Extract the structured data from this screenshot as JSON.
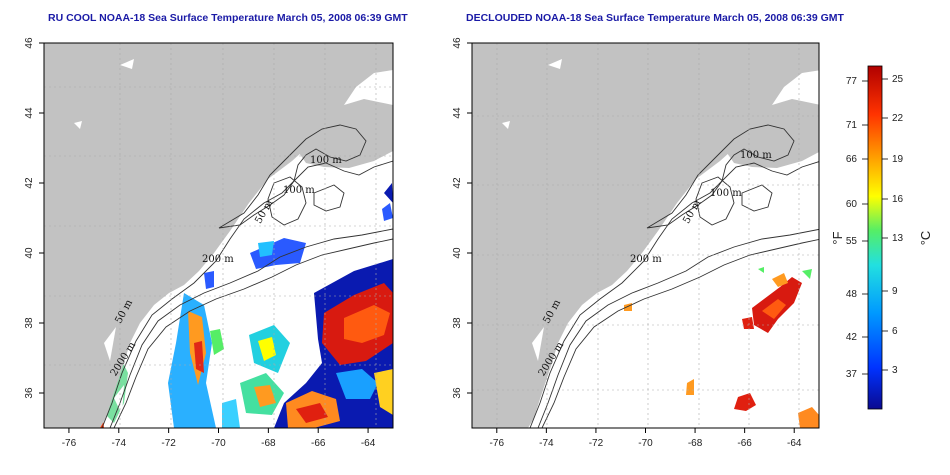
{
  "titles": {
    "left": "RU COOL NOAA-18 Sea Surface Temperature March 05, 2008 06:39 GMT",
    "right": "DECLOUDED NOAA-18 Sea Surface Temperature March 05, 2008 06:39 GMT"
  },
  "axes": {
    "lon_range": [
      -77,
      -63
    ],
    "lat_range": [
      35,
      46
    ],
    "lon_ticks": [
      "-76",
      "-74",
      "-72",
      "-70",
      "-68",
      "-66",
      "-64"
    ],
    "lon_tick_values": [
      -76,
      -74,
      -72,
      -70,
      -68,
      -66,
      -64
    ],
    "lat_ticks": [
      "36",
      "38",
      "40",
      "42",
      "44",
      "46"
    ],
    "lat_tick_values": [
      36,
      38,
      40,
      42,
      44,
      46
    ]
  },
  "contour_labels": {
    "c100_top": "100 m",
    "c100_mid": "100 m",
    "c50": "50 m",
    "c200": "200 m",
    "c50_south": "50 m",
    "c2000": "2000 m"
  },
  "colorbar": {
    "fahrenheit_labels": [
      "77",
      "71",
      "66",
      "60",
      "55",
      "48",
      "42",
      "37"
    ],
    "celsius_labels": [
      "25",
      "22",
      "19",
      "16",
      "13",
      "9",
      "6",
      "3"
    ],
    "unit_f": "°F",
    "unit_c": "°C",
    "colors": [
      "#0a0a90",
      "#0033ff",
      "#0099ff",
      "#22e0e0",
      "#55ee66",
      "#ffff00",
      "#ff9900",
      "#ff3300",
      "#b00000"
    ]
  },
  "colors": {
    "land": "#c2c2c2",
    "ocean": "#ffffff",
    "contour": "#333333",
    "grid": "#aaaaaa",
    "title": "#1a1aa6"
  }
}
